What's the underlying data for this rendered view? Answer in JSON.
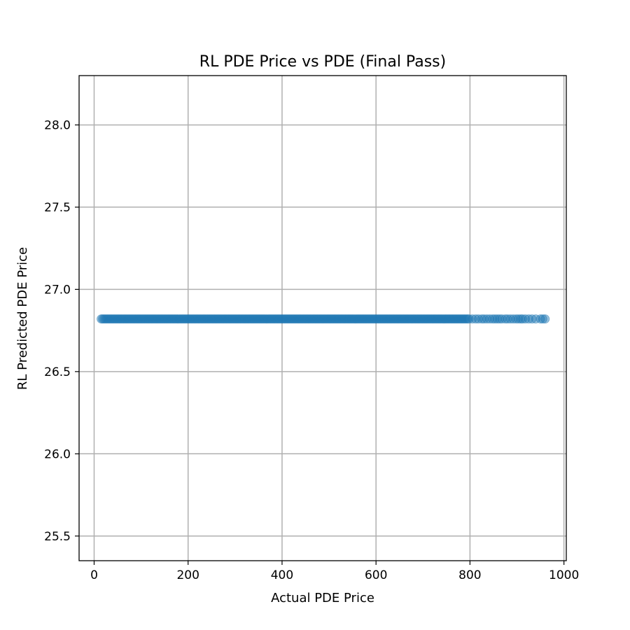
{
  "chart_data": {
    "type": "scatter",
    "title": "RL PDE Price vs PDE (Final Pass)",
    "xlabel": "Actual PDE Price",
    "ylabel": "RL Predicted PDE Price",
    "xlim": [
      -32,
      1005
    ],
    "ylim": [
      25.35,
      28.3
    ],
    "xticks": [
      0,
      200,
      400,
      600,
      800,
      1000
    ],
    "yticks": [
      25.5,
      26.0,
      26.5,
      27.0,
      27.5,
      28.0
    ],
    "xtick_labels": [
      "0",
      "200",
      "400",
      "600",
      "800",
      "1000"
    ],
    "ytick_labels": [
      "25.5",
      "26.0",
      "26.5",
      "27.0",
      "27.5",
      "28.0"
    ],
    "grid": true,
    "legend": "none",
    "series": [
      {
        "color": "#1f77b4",
        "alpha": 0.45,
        "constant_y": 26.82,
        "dense_x_range": [
          15,
          800
        ],
        "sparse_x": [
          805,
          812,
          818,
          825,
          830,
          836,
          842,
          848,
          853,
          858,
          863,
          868,
          875,
          880,
          886,
          892,
          898,
          903,
          908,
          912,
          918,
          925,
          932,
          940,
          950,
          955,
          960
        ]
      }
    ]
  }
}
